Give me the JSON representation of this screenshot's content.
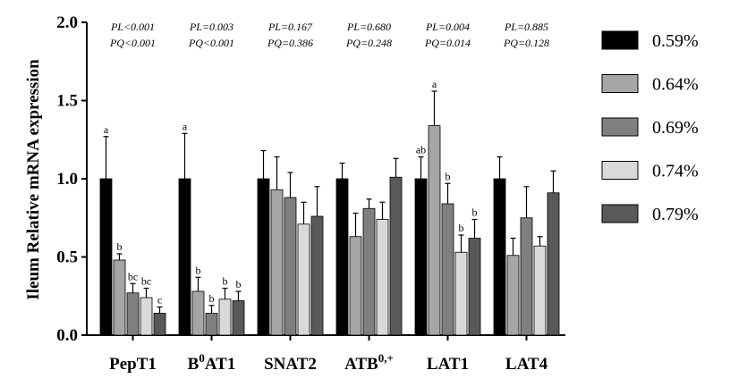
{
  "chart_data": {
    "type": "bar",
    "ylabel": "Ileum Relative mRNA expression",
    "ylim": [
      0,
      2.0
    ],
    "yticks": [
      "0.0",
      "0.5",
      "1.0",
      "1.5",
      "2.0"
    ],
    "categories": [
      "PepT1",
      "B0AT1",
      "SNAT2",
      "ATB0,+",
      "LAT1",
      "LAT4"
    ],
    "category_labels": [
      {
        "base": "PepT1",
        "sup": ""
      },
      {
        "base": "B",
        "sup": "0",
        "rest": "AT1"
      },
      {
        "base": "SNAT2",
        "sup": ""
      },
      {
        "base": "ATB",
        "sup": "0,+"
      },
      {
        "base": "LAT1",
        "sup": ""
      },
      {
        "base": "LAT4",
        "sup": ""
      }
    ],
    "series": [
      {
        "name": "0.59%",
        "color": "#000000",
        "values": [
          1.0,
          1.0,
          1.0,
          1.0,
          1.0,
          1.0
        ],
        "errors": [
          0.27,
          0.29,
          0.18,
          0.1,
          0.14,
          0.14
        ],
        "labels": [
          "a",
          "a",
          "",
          "",
          "ab",
          ""
        ]
      },
      {
        "name": "0.64%",
        "color": "#a6a6a6",
        "values": [
          0.48,
          0.28,
          0.93,
          0.63,
          1.34,
          0.51
        ],
        "errors": [
          0.04,
          0.09,
          0.21,
          0.15,
          0.22,
          0.11
        ],
        "labels": [
          "b",
          "b",
          "",
          "",
          "a",
          ""
        ]
      },
      {
        "name": "0.69%",
        "color": "#7f7f7f",
        "values": [
          0.27,
          0.14,
          0.88,
          0.81,
          0.84,
          0.75
        ],
        "errors": [
          0.06,
          0.05,
          0.16,
          0.06,
          0.13,
          0.2
        ],
        "labels": [
          "bc",
          "b",
          "",
          "",
          "b",
          ""
        ]
      },
      {
        "name": "0.74%",
        "color": "#d9d9d9",
        "values": [
          0.24,
          0.23,
          0.71,
          0.74,
          0.53,
          0.57
        ],
        "errors": [
          0.06,
          0.07,
          0.14,
          0.11,
          0.11,
          0.06
        ],
        "labels": [
          "bc",
          "b",
          "",
          "",
          "b",
          ""
        ]
      },
      {
        "name": "0.79%",
        "color": "#595959",
        "values": [
          0.14,
          0.22,
          0.76,
          1.01,
          0.62,
          0.91
        ],
        "errors": [
          0.04,
          0.06,
          0.19,
          0.12,
          0.12,
          0.14
        ],
        "labels": [
          "c",
          "b",
          "",
          "",
          "b",
          ""
        ]
      }
    ],
    "p_values": [
      {
        "pl": "PL<0.001",
        "pq": "PQ<0.001"
      },
      {
        "pl": "PL=0.003",
        "pq": "PQ<0.001"
      },
      {
        "pl": "PL=0.167",
        "pq": "PQ=0.386"
      },
      {
        "pl": "PL=0.680",
        "pq": "PQ=0.248"
      },
      {
        "pl": "PL=0.004",
        "pq": "PQ=0.014"
      },
      {
        "pl": "PL=0.885",
        "pq": "PQ=0.128"
      }
    ],
    "legend_position": "right"
  }
}
